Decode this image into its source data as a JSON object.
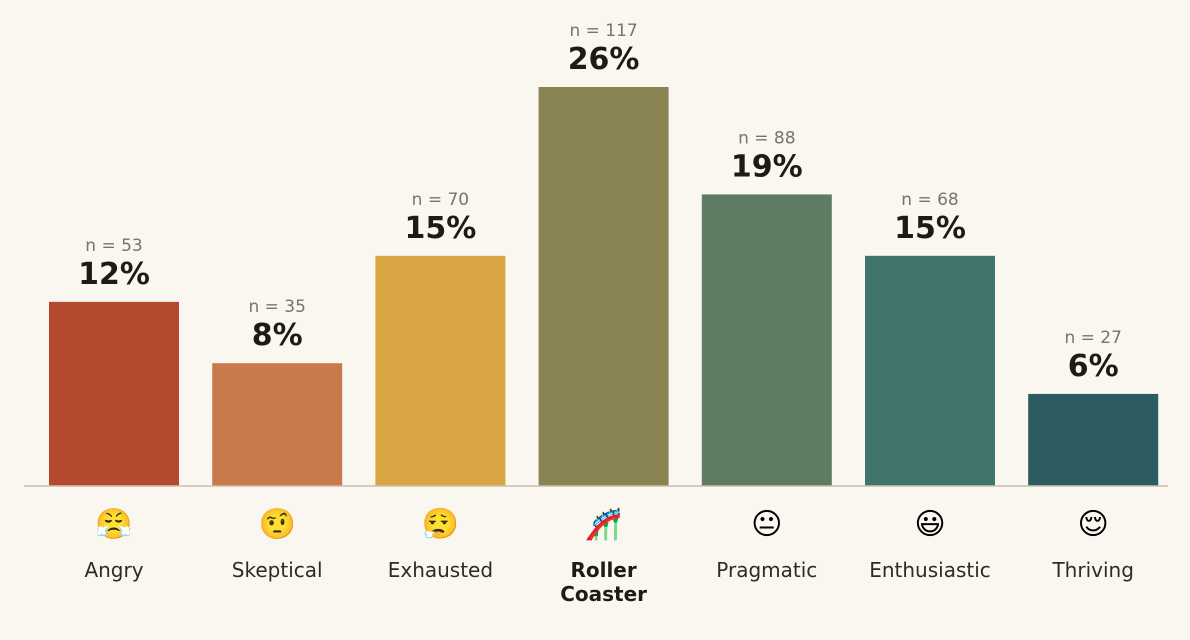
{
  "chart_data": {
    "type": "bar",
    "categories": [
      "Angry",
      "Skeptical",
      "Exhausted",
      "Roller Coaster",
      "Pragmatic",
      "Enthusiastic",
      "Thriving"
    ],
    "category_lines": [
      [
        "Angry"
      ],
      [
        "Skeptical"
      ],
      [
        "Exhausted"
      ],
      [
        "Roller",
        "Coaster"
      ],
      [
        "Pragmatic"
      ],
      [
        "Enthusiastic"
      ],
      [
        "Thriving"
      ]
    ],
    "values": [
      12,
      8,
      15,
      26,
      19,
      15,
      6
    ],
    "value_labels": [
      "12%",
      "8%",
      "15%",
      "26%",
      "19%",
      "15%",
      "6%"
    ],
    "counts": [
      53,
      35,
      70,
      117,
      88,
      68,
      27
    ],
    "count_labels": [
      "n = 53",
      "n = 35",
      "n = 70",
      "n = 117",
      "n = 88",
      "n = 68",
      "n = 27"
    ],
    "icons": [
      "😤",
      "🤨",
      "😮‍💨",
      "🎢",
      "😐",
      "😃",
      "😌"
    ],
    "icon_names": [
      "huffing-face-icon",
      "raised-eyebrow-face-icon",
      "exhaling-face-icon",
      "roller-coaster-icon",
      "neutral-face-icon",
      "grinning-face-icon",
      "relieved-face-icon"
    ],
    "colors": [
      "#b5492f",
      "#c97a4b",
      "#d9a441",
      "#8a8453",
      "#5f7c63",
      "#3f756c",
      "#2d5c60"
    ],
    "highlighted_category": "Roller Coaster",
    "ylim": [
      0,
      26
    ],
    "grid": false,
    "title": "",
    "xlabel": "",
    "ylabel": ""
  }
}
